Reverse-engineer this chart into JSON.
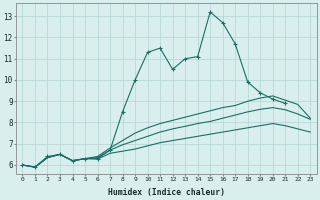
{
  "title": "",
  "xlabel": "Humidex (Indice chaleur)",
  "ylabel": "",
  "background_color": "#d8efee",
  "grid_color": "#b8d8d6",
  "line_color": "#1a6e64",
  "xlim": [
    -0.5,
    23.5
  ],
  "ylim": [
    5.6,
    13.6
  ],
  "xticks": [
    0,
    1,
    2,
    3,
    4,
    5,
    6,
    7,
    8,
    9,
    10,
    11,
    12,
    13,
    14,
    15,
    16,
    17,
    18,
    19,
    20,
    21,
    22,
    23
  ],
  "yticks": [
    6,
    7,
    8,
    9,
    10,
    11,
    12,
    13
  ],
  "series": [
    {
      "x": [
        0,
        1,
        2,
        3,
        4,
        5,
        6,
        7,
        8,
        9,
        10,
        11,
        12,
        13,
        14,
        15,
        16,
        17,
        18,
        19,
        20,
        21
      ],
      "y": [
        6.0,
        5.9,
        6.4,
        6.5,
        6.2,
        6.3,
        6.3,
        6.7,
        8.5,
        10.0,
        11.3,
        11.5,
        10.5,
        11.0,
        11.1,
        13.2,
        12.7,
        11.7,
        9.9,
        9.4,
        9.1,
        8.9
      ],
      "marker": "+"
    },
    {
      "x": [
        0,
        1,
        2,
        3,
        4,
        5,
        6,
        7,
        8,
        9,
        10,
        11,
        12,
        13,
        14,
        15,
        16,
        17,
        18,
        19,
        20,
        21,
        22,
        23
      ],
      "y": [
        6.0,
        5.9,
        6.35,
        6.5,
        6.2,
        6.3,
        6.4,
        6.8,
        7.15,
        7.5,
        7.75,
        7.95,
        8.1,
        8.25,
        8.4,
        8.55,
        8.7,
        8.8,
        9.0,
        9.15,
        9.25,
        9.05,
        8.85,
        8.2
      ],
      "marker": null
    },
    {
      "x": [
        0,
        1,
        2,
        3,
        4,
        5,
        6,
        7,
        8,
        9,
        10,
        11,
        12,
        13,
        14,
        15,
        16,
        17,
        18,
        19,
        20,
        21,
        22,
        23
      ],
      "y": [
        6.0,
        5.9,
        6.35,
        6.5,
        6.2,
        6.3,
        6.35,
        6.7,
        6.95,
        7.15,
        7.35,
        7.55,
        7.7,
        7.82,
        7.95,
        8.05,
        8.2,
        8.35,
        8.5,
        8.62,
        8.7,
        8.6,
        8.4,
        8.15
      ],
      "marker": null
    },
    {
      "x": [
        0,
        1,
        2,
        3,
        4,
        5,
        6,
        7,
        8,
        9,
        10,
        11,
        12,
        13,
        14,
        15,
        16,
        17,
        18,
        19,
        20,
        21,
        22,
        23
      ],
      "y": [
        6.0,
        5.9,
        6.35,
        6.5,
        6.2,
        6.3,
        6.28,
        6.55,
        6.65,
        6.75,
        6.9,
        7.05,
        7.15,
        7.25,
        7.35,
        7.45,
        7.55,
        7.65,
        7.75,
        7.85,
        7.95,
        7.85,
        7.7,
        7.55
      ],
      "marker": null
    }
  ]
}
